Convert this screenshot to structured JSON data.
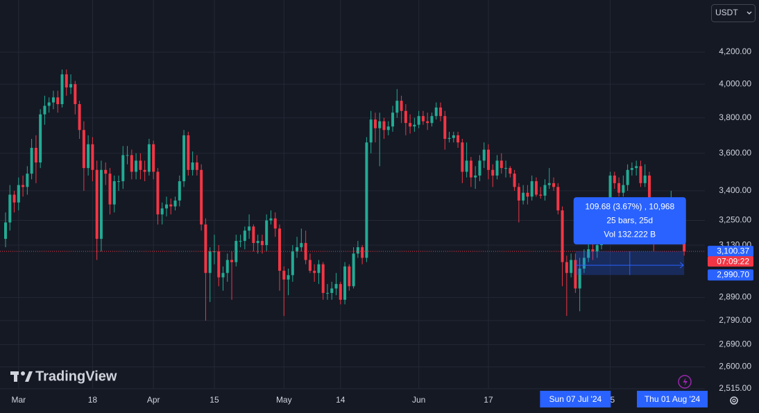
{
  "chart_data": {
    "type": "candlestick",
    "currency": "USDT",
    "log_scale": true,
    "grid": true,
    "up_color": "#22ab94",
    "down_color": "#f23645",
    "x": [
      "2024-02-27",
      "2024-02-28",
      "2024-02-29",
      "2024-03-01",
      "2024-03-02",
      "2024-03-03",
      "2024-03-04",
      "2024-03-05",
      "2024-03-06",
      "2024-03-07",
      "2024-03-08",
      "2024-03-09",
      "2024-03-10",
      "2024-03-11",
      "2024-03-12",
      "2024-03-13",
      "2024-03-14",
      "2024-03-15",
      "2024-03-16",
      "2024-03-17",
      "2024-03-18",
      "2024-03-19",
      "2024-03-20",
      "2024-03-21",
      "2024-03-22",
      "2024-03-23",
      "2024-03-24",
      "2024-03-25",
      "2024-03-26",
      "2024-03-27",
      "2024-03-28",
      "2024-03-29",
      "2024-03-30",
      "2024-03-31",
      "2024-04-01",
      "2024-04-02",
      "2024-04-03",
      "2024-04-04",
      "2024-04-05",
      "2024-04-06",
      "2024-04-07",
      "2024-04-08",
      "2024-04-09",
      "2024-04-10",
      "2024-04-11",
      "2024-04-12",
      "2024-04-13",
      "2024-04-14",
      "2024-04-15",
      "2024-04-16",
      "2024-04-17",
      "2024-04-18",
      "2024-04-19",
      "2024-04-20",
      "2024-04-21",
      "2024-04-22",
      "2024-04-23",
      "2024-04-24",
      "2024-04-25",
      "2024-04-26",
      "2024-04-27",
      "2024-04-28",
      "2024-04-29",
      "2024-04-30",
      "2024-05-01",
      "2024-05-02",
      "2024-05-03",
      "2024-05-04",
      "2024-05-05",
      "2024-05-06",
      "2024-05-07",
      "2024-05-08",
      "2024-05-09",
      "2024-05-10",
      "2024-05-11",
      "2024-05-12",
      "2024-05-13",
      "2024-05-14",
      "2024-05-15",
      "2024-05-16",
      "2024-05-17",
      "2024-05-18",
      "2024-05-19",
      "2024-05-20",
      "2024-05-21",
      "2024-05-22",
      "2024-05-23",
      "2024-05-24",
      "2024-05-25",
      "2024-05-26",
      "2024-05-27",
      "2024-05-28",
      "2024-05-29",
      "2024-05-30",
      "2024-05-31",
      "2024-06-01",
      "2024-06-02",
      "2024-06-03",
      "2024-06-04",
      "2024-06-05",
      "2024-06-06",
      "2024-06-07",
      "2024-06-08",
      "2024-06-09",
      "2024-06-10",
      "2024-06-11",
      "2024-06-12",
      "2024-06-13",
      "2024-06-14",
      "2024-06-15",
      "2024-06-16",
      "2024-06-17",
      "2024-06-18",
      "2024-06-19",
      "2024-06-20",
      "2024-06-21",
      "2024-06-22",
      "2024-06-23",
      "2024-06-24",
      "2024-06-25",
      "2024-06-26",
      "2024-06-27",
      "2024-06-28",
      "2024-06-29",
      "2024-06-30",
      "2024-07-01",
      "2024-07-02",
      "2024-07-03",
      "2024-07-04",
      "2024-07-05",
      "2024-07-06",
      "2024-07-07",
      "2024-07-08",
      "2024-07-09",
      "2024-07-10",
      "2024-07-11",
      "2024-07-12",
      "2024-07-13",
      "2024-07-14",
      "2024-07-15",
      "2024-07-16",
      "2024-07-17",
      "2024-07-18",
      "2024-07-19",
      "2024-07-20",
      "2024-07-21",
      "2024-07-22",
      "2024-07-23",
      "2024-07-24",
      "2024-07-25",
      "2024-07-26",
      "2024-07-27",
      "2024-07-28",
      "2024-07-29",
      "2024-07-30",
      "2024-07-31",
      "2024-08-01"
    ],
    "open": [
      3160,
      3240,
      3380,
      3340,
      3430,
      3420,
      3490,
      3630,
      3550,
      3820,
      3870,
      3890,
      3920,
      3880,
      4060,
      3980,
      4000,
      3880,
      3730,
      3520,
      3650,
      3510,
      3160,
      3510,
      3490,
      3330,
      3450,
      3450,
      3590,
      3590,
      3500,
      3560,
      3510,
      3500,
      3650,
      3500,
      3280,
      3310,
      3330,
      3320,
      3350,
      3450,
      3700,
      3510,
      3550,
      3510,
      3230,
      3000,
      3100,
      3100,
      2980,
      3000,
      3060,
      3050,
      3150,
      3150,
      3200,
      3220,
      3140,
      3150,
      3130,
      3250,
      3260,
      3210,
      3010,
      2970,
      2990,
      3100,
      3120,
      3140,
      3060,
      3010,
      3000,
      3040,
      2910,
      2910,
      2930,
      2950,
      2880,
      3030,
      2940,
      3090,
      3120,
      3070,
      3660,
      3790,
      3740,
      3780,
      3730,
      3750,
      3830,
      3900,
      3840,
      3770,
      3750,
      3760,
      3810,
      3780,
      3770,
      3810,
      3860,
      3810,
      3680,
      3685,
      3700,
      3660,
      3500,
      3560,
      3470,
      3480,
      3560,
      3620,
      3510,
      3480,
      3560,
      3520,
      3520,
      3490,
      3420,
      3350,
      3390,
      3370,
      3450,
      3380,
      3375,
      3430,
      3440,
      3420,
      3300,
      3050,
      3000,
      3060,
      2930,
      3020,
      3070,
      3110,
      3100,
      3130,
      3180,
      3250,
      3480,
      3440,
      3390,
      3430,
      3510,
      3520,
      3530,
      3440,
      3480,
      3330,
      3170,
      3270,
      3250,
      3270,
      3320,
      3280,
      3230
    ],
    "high": [
      3290,
      3430,
      3400,
      3470,
      3480,
      3530,
      3680,
      3700,
      3850,
      3930,
      3920,
      3960,
      3960,
      4090,
      4090,
      4060,
      4020,
      3900,
      3780,
      3700,
      3690,
      3560,
      3560,
      3550,
      3520,
      3480,
      3480,
      3640,
      3640,
      3620,
      3600,
      3600,
      3560,
      3680,
      3670,
      3520,
      3340,
      3370,
      3360,
      3370,
      3480,
      3730,
      3720,
      3610,
      3590,
      3540,
      3260,
      3120,
      3180,
      3130,
      3030,
      3090,
      3100,
      3180,
      3180,
      3220,
      3280,
      3230,
      3180,
      3180,
      3280,
      3300,
      3290,
      3230,
      3030,
      3020,
      3130,
      3170,
      3210,
      3200,
      3090,
      3040,
      3060,
      3050,
      2950,
      2960,
      3000,
      2960,
      3050,
      3040,
      3120,
      3150,
      3130,
      3690,
      3840,
      3830,
      3830,
      3800,
      3780,
      3870,
      3970,
      3930,
      3880,
      3820,
      3800,
      3840,
      3840,
      3830,
      3830,
      3890,
      3890,
      3840,
      3720,
      3720,
      3720,
      3680,
      3660,
      3580,
      3530,
      3590,
      3660,
      3650,
      3540,
      3590,
      3600,
      3560,
      3530,
      3510,
      3440,
      3430,
      3430,
      3480,
      3470,
      3420,
      3460,
      3520,
      3470,
      3440,
      3320,
      3080,
      3090,
      3090,
      3070,
      3110,
      3150,
      3150,
      3150,
      3200,
      3270,
      3500,
      3500,
      3470,
      3480,
      3540,
      3550,
      3560,
      3560,
      3540,
      3500,
      3350,
      3290,
      3290,
      3300,
      3400,
      3320,
      3300,
      3250
    ],
    "low": [
      3120,
      3200,
      3290,
      3300,
      3370,
      3380,
      3460,
      3440,
      3520,
      3760,
      3830,
      3850,
      3830,
      3860,
      3930,
      3940,
      3820,
      3680,
      3400,
      3480,
      3450,
      3060,
      3100,
      3430,
      3280,
      3290,
      3400,
      3410,
      3540,
      3460,
      3460,
      3460,
      3450,
      3480,
      3460,
      3230,
      3230,
      3270,
      3280,
      3300,
      3320,
      3420,
      3480,
      3480,
      3480,
      3200,
      2790,
      2870,
      3040,
      2940,
      2920,
      2960,
      2880,
      3030,
      3120,
      3110,
      3160,
      3100,
      3090,
      3090,
      3100,
      3230,
      3170,
      2920,
      2810,
      2900,
      2960,
      3070,
      3100,
      3040,
      3000,
      2960,
      2950,
      2880,
      2880,
      2880,
      2900,
      2860,
      2860,
      2920,
      2930,
      3070,
      3040,
      3050,
      3600,
      3660,
      3530,
      3680,
      3700,
      3720,
      3800,
      3770,
      3700,
      3710,
      3720,
      3740,
      3760,
      3730,
      3750,
      3790,
      3780,
      3620,
      3660,
      3660,
      3630,
      3440,
      3470,
      3420,
      3410,
      3450,
      3520,
      3460,
      3420,
      3460,
      3490,
      3470,
      3470,
      3400,
      3240,
      3330,
      3330,
      3350,
      3370,
      3360,
      3350,
      3410,
      3400,
      3280,
      2940,
      2810,
      2980,
      2910,
      2830,
      3000,
      3050,
      3060,
      3070,
      3110,
      3170,
      3230,
      3410,
      3370,
      3370,
      3400,
      3480,
      3480,
      3420,
      3420,
      3300,
      3100,
      3160,
      3200,
      3210,
      3250,
      3260,
      3200,
      3080
    ],
    "close": [
      3240,
      3380,
      3340,
      3430,
      3420,
      3490,
      3630,
      3550,
      3820,
      3870,
      3890,
      3920,
      3880,
      4060,
      3980,
      4000,
      3880,
      3730,
      3520,
      3650,
      3510,
      3160,
      3510,
      3490,
      3330,
      3450,
      3450,
      3590,
      3590,
      3500,
      3560,
      3510,
      3500,
      3650,
      3500,
      3280,
      3310,
      3330,
      3320,
      3350,
      3450,
      3700,
      3510,
      3550,
      3510,
      3230,
      3000,
      3100,
      3100,
      2980,
      3000,
      3060,
      3050,
      3150,
      3150,
      3200,
      3220,
      3140,
      3150,
      3130,
      3250,
      3260,
      3210,
      3010,
      2970,
      2990,
      3100,
      3120,
      3140,
      3060,
      3010,
      3000,
      3040,
      2910,
      2910,
      2930,
      2950,
      2880,
      3030,
      2940,
      3090,
      3120,
      3070,
      3660,
      3790,
      3740,
      3780,
      3730,
      3750,
      3830,
      3900,
      3840,
      3770,
      3750,
      3760,
      3810,
      3780,
      3770,
      3810,
      3860,
      3810,
      3680,
      3685,
      3700,
      3660,
      3500,
      3560,
      3470,
      3480,
      3560,
      3620,
      3510,
      3480,
      3560,
      3520,
      3520,
      3490,
      3420,
      3350,
      3390,
      3370,
      3450,
      3380,
      3375,
      3430,
      3440,
      3420,
      3300,
      3050,
      3000,
      3060,
      2930,
      3020,
      3070,
      3110,
      3100,
      3130,
      3180,
      3250,
      3480,
      3440,
      3390,
      3430,
      3510,
      3520,
      3530,
      3440,
      3480,
      3330,
      3170,
      3270,
      3250,
      3270,
      3320,
      3280,
      3230,
      3100
    ],
    "ylim": [
      2515,
      4547
    ],
    "yticks": [
      {
        "value": 2515,
        "label": "2,515.00"
      },
      {
        "value": 2600,
        "label": "2,600.00"
      },
      {
        "value": 2690,
        "label": "2,690.00"
      },
      {
        "value": 2790,
        "label": "2,790.00"
      },
      {
        "value": 2890,
        "label": "2,890.00"
      },
      {
        "value": 3130,
        "label": "3,130.00"
      },
      {
        "value": 3250,
        "label": "3,250.00"
      },
      {
        "value": 3400,
        "label": "3,400.00"
      },
      {
        "value": 3600,
        "label": "3,600.00"
      },
      {
        "value": 3800,
        "label": "3,800.00"
      },
      {
        "value": 4000,
        "label": "4,000.00"
      },
      {
        "value": 4200,
        "label": "4,200.00"
      }
    ],
    "xticks": [
      {
        "value": "2024-03-01",
        "label": "Mar"
      },
      {
        "value": "2024-03-18",
        "label": "18"
      },
      {
        "value": "2024-04-01",
        "label": "Apr"
      },
      {
        "value": "2024-04-15",
        "label": "15"
      },
      {
        "value": "2024-05-01",
        "label": "May"
      },
      {
        "value": "2024-05-14",
        "label": "14"
      },
      {
        "value": "2024-06-01",
        "label": "Jun"
      },
      {
        "value": "2024-06-17",
        "label": "17"
      },
      {
        "value": "2024-07-15",
        "label": "15"
      }
    ],
    "last_price": {
      "value": 3100.37,
      "label": "3,100.37"
    },
    "countdown": "07:09:22",
    "y_markers": [
      {
        "value": 2990.7,
        "label": "2,990.70"
      }
    ],
    "x_markers": [
      {
        "value": "2024-07-07",
        "label": "Sun 07 Jul '24"
      },
      {
        "value": "2024-08-01",
        "label": "Thu 01 Aug '24"
      }
    ],
    "measure": {
      "start": "2024-07-07",
      "end": "2024-08-01",
      "from": 2990.7,
      "to": 3100.37,
      "lines": [
        "109.68 (3.67%) , 10,968",
        "25 bars, 25d",
        "Vol 132.222 B"
      ]
    }
  },
  "brand": "TradingView"
}
